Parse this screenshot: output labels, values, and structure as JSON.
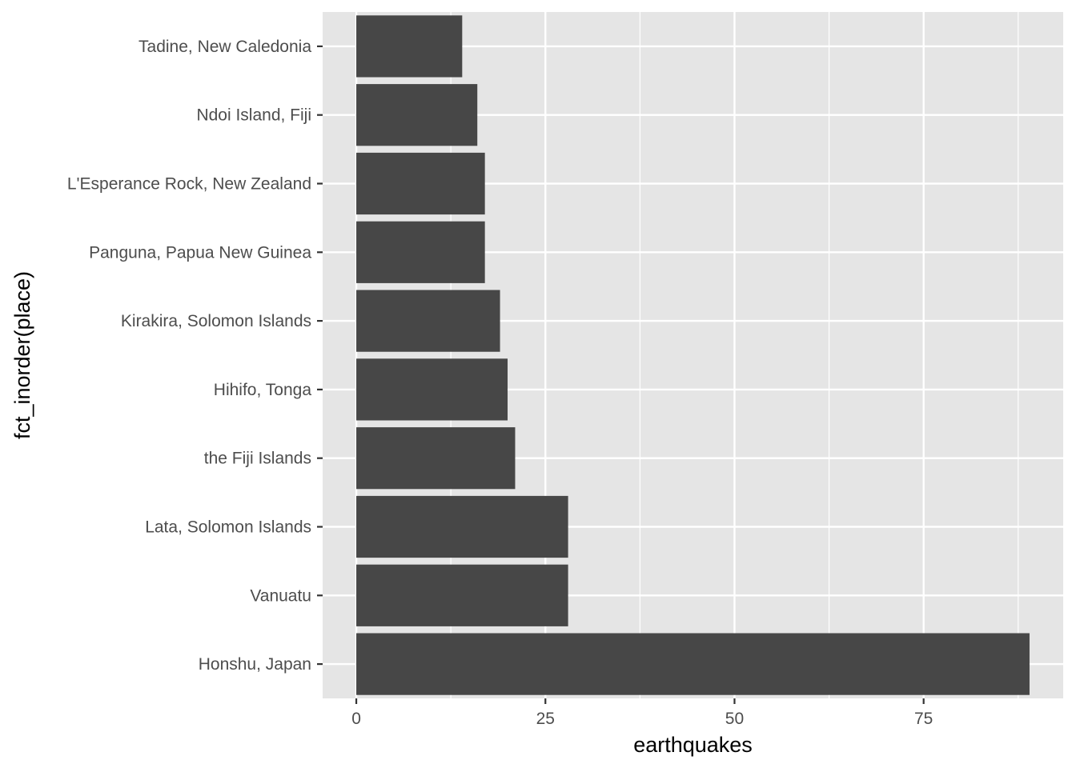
{
  "chart_data": {
    "type": "bar",
    "orientation": "horizontal",
    "categories": [
      "Honshu, Japan",
      "Vanuatu",
      "Lata, Solomon Islands",
      "the Fiji Islands",
      "Hihifo, Tonga",
      "Kirakira, Solomon Islands",
      "Panguna, Papua New Guinea",
      "L'Esperance Rock, New Zealand",
      "Ndoi Island, Fiji",
      "Tadine, New Caledonia"
    ],
    "values": [
      89,
      28,
      28,
      21,
      20,
      19,
      17,
      17,
      16,
      14
    ],
    "xlabel": "earthquakes",
    "ylabel": "fct_inorder(place)",
    "xlim": [
      -4.45,
      93.45
    ],
    "x_ticks": [
      "0",
      "25",
      "50",
      "75"
    ],
    "x_tick_values": [
      0,
      25,
      50,
      75
    ],
    "grid": true,
    "colors": {
      "bar": "#474747",
      "panel": "#e5e5e5",
      "grid": "#ffffff",
      "tick_text": "#4d4d4d",
      "tick_mark": "#333333",
      "axis_title": "#000000"
    }
  }
}
